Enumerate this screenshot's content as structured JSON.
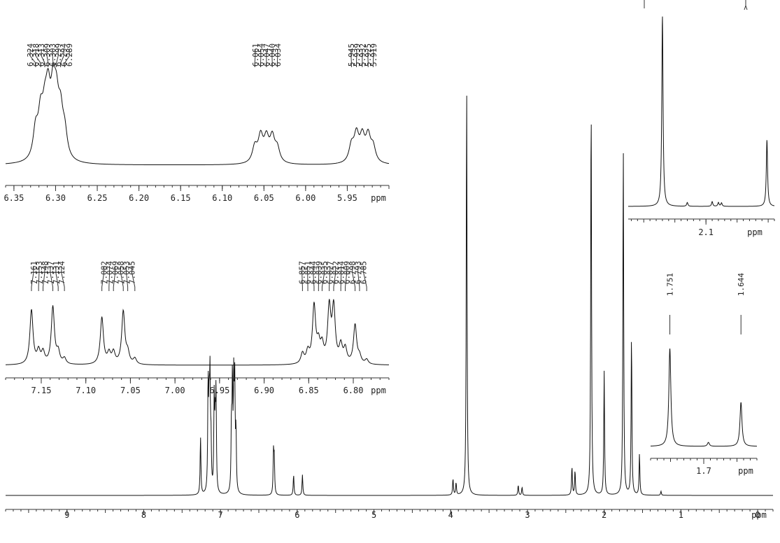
{
  "chart_data": [
    {
      "panel": "full",
      "type": "line",
      "axis": {
        "min": -0.2,
        "max": 9.8,
        "reversed": true,
        "major_ticks": [
          9,
          8,
          7,
          6,
          5,
          4,
          3,
          2,
          1,
          0
        ],
        "minor_step": 0.1,
        "unit_label": "ppm"
      },
      "peaks": [
        {
          "x": 7.26,
          "y": 0.14
        },
        {
          "x": 7.161,
          "y": 0.26
        },
        {
          "x": 7.148,
          "y": 0.18
        },
        {
          "x": 7.137,
          "y": 0.26
        },
        {
          "x": 7.124,
          "y": 0.12
        },
        {
          "x": 7.082,
          "y": 0.22
        },
        {
          "x": 7.069,
          "y": 0.14
        },
        {
          "x": 7.058,
          "y": 0.23
        },
        {
          "x": 6.857,
          "y": 0.16
        },
        {
          "x": 6.844,
          "y": 0.26
        },
        {
          "x": 6.827,
          "y": 0.25
        },
        {
          "x": 6.814,
          "y": 0.25
        },
        {
          "x": 6.798,
          "y": 0.14
        },
        {
          "x": 6.309,
          "y": 0.1
        },
        {
          "x": 6.299,
          "y": 0.08
        },
        {
          "x": 6.047,
          "y": 0.05
        },
        {
          "x": 5.932,
          "y": 0.05
        },
        {
          "x": 3.97,
          "y": 0.04
        },
        {
          "x": 3.93,
          "y": 0.03
        },
        {
          "x": 3.792,
          "y": 1.0
        },
        {
          "x": 3.12,
          "y": 0.025
        },
        {
          "x": 3.07,
          "y": 0.02
        },
        {
          "x": 2.42,
          "y": 0.07
        },
        {
          "x": 2.38,
          "y": 0.06
        },
        {
          "x": 2.17,
          "y": 0.98
        },
        {
          "x": 2.0,
          "y": 0.3
        },
        {
          "x": 1.751,
          "y": 0.85
        },
        {
          "x": 1.644,
          "y": 0.39
        },
        {
          "x": 1.54,
          "y": 0.1
        },
        {
          "x": 1.26,
          "y": 0.01
        }
      ]
    },
    {
      "panel": "inset-6.3-5.9",
      "type": "line",
      "axis": {
        "min": 5.9,
        "max": 6.36,
        "reversed": true,
        "major_ticks": [
          6.35,
          6.3,
          6.25,
          6.2,
          6.15,
          6.1,
          6.05,
          6.0,
          5.95
        ],
        "minor_step": 0.01,
        "unit_label": "ppm"
      },
      "peak_labels": [
        [
          "6.324",
          "6.318",
          "6.313",
          "6.309",
          "6.303",
          "6.299",
          "6.294",
          "6.289"
        ],
        [
          "6.061",
          "6.054",
          "6.047",
          "6.040",
          "6.034"
        ],
        [
          "5.945",
          "5.939",
          "5.932",
          "5.925",
          "5.919"
        ]
      ],
      "peaks": [
        {
          "x": 6.324,
          "y": 0.45
        },
        {
          "x": 6.318,
          "y": 0.62
        },
        {
          "x": 6.313,
          "y": 0.55
        },
        {
          "x": 6.309,
          "y": 0.85
        },
        {
          "x": 6.303,
          "y": 0.88
        },
        {
          "x": 6.299,
          "y": 0.7
        },
        {
          "x": 6.294,
          "y": 0.62
        },
        {
          "x": 6.289,
          "y": 0.38
        },
        {
          "x": 6.061,
          "y": 0.25
        },
        {
          "x": 6.054,
          "y": 0.4
        },
        {
          "x": 6.047,
          "y": 0.36
        },
        {
          "x": 6.04,
          "y": 0.38
        },
        {
          "x": 6.034,
          "y": 0.22
        },
        {
          "x": 5.945,
          "y": 0.26
        },
        {
          "x": 5.939,
          "y": 0.42
        },
        {
          "x": 5.932,
          "y": 0.38
        },
        {
          "x": 5.925,
          "y": 0.4
        },
        {
          "x": 5.919,
          "y": 0.24
        }
      ]
    },
    {
      "panel": "inset-7.2-6.8",
      "type": "line",
      "axis": {
        "min": 6.76,
        "max": 7.19,
        "reversed": true,
        "major_ticks": [
          7.15,
          7.1,
          7.05,
          7.0,
          6.95,
          6.9,
          6.85,
          6.8
        ],
        "minor_step": 0.01,
        "unit_label": "ppm"
      },
      "peak_labels": [
        [
          "7.161",
          "7.153",
          "7.148",
          "7.137",
          "7.131",
          "7.124"
        ],
        [
          "7.082",
          "7.074",
          "7.069",
          "7.058",
          "7.053",
          "7.045"
        ],
        [
          "6.857",
          "6.851",
          "6.844",
          "6.839",
          "6.835",
          "6.827",
          "6.822",
          "6.814",
          "6.809",
          "6.798",
          "6.793",
          "6.785"
        ]
      ],
      "peaks": [
        {
          "x": 7.161,
          "y": 0.95
        },
        {
          "x": 7.153,
          "y": 0.22
        },
        {
          "x": 7.148,
          "y": 0.2
        },
        {
          "x": 7.137,
          "y": 1.0
        },
        {
          "x": 7.131,
          "y": 0.2
        },
        {
          "x": 7.124,
          "y": 0.1
        },
        {
          "x": 7.082,
          "y": 0.82
        },
        {
          "x": 7.074,
          "y": 0.18
        },
        {
          "x": 7.069,
          "y": 0.2
        },
        {
          "x": 7.058,
          "y": 0.92
        },
        {
          "x": 7.053,
          "y": 0.18
        },
        {
          "x": 7.045,
          "y": 0.1
        },
        {
          "x": 6.857,
          "y": 0.18
        },
        {
          "x": 6.851,
          "y": 0.2
        },
        {
          "x": 6.844,
          "y": 1.0
        },
        {
          "x": 6.839,
          "y": 0.3
        },
        {
          "x": 6.835,
          "y": 0.28
        },
        {
          "x": 6.827,
          "y": 0.95
        },
        {
          "x": 6.822,
          "y": 0.95
        },
        {
          "x": 6.814,
          "y": 0.3
        },
        {
          "x": 6.809,
          "y": 0.25
        },
        {
          "x": 6.798,
          "y": 0.68
        },
        {
          "x": 6.793,
          "y": 0.12
        },
        {
          "x": 6.785,
          "y": 0.08
        }
      ]
    },
    {
      "panel": "inset-2.2-2.0",
      "type": "line",
      "axis": {
        "min": 1.99,
        "max": 2.225,
        "reversed": true,
        "major_ticks": [
          2.1
        ],
        "minor_step": 0.01,
        "unit_label": "ppm"
      },
      "peaks": [
        {
          "x": 2.17,
          "y": 1.0
        },
        {
          "x": 2.002,
          "y": 0.35
        },
        {
          "x": 2.13,
          "y": 0.02
        },
        {
          "x": 2.09,
          "y": 0.025
        },
        {
          "x": 2.08,
          "y": 0.02
        },
        {
          "x": 2.075,
          "y": 0.018
        }
      ]
    },
    {
      "panel": "inset-1.75-1.64",
      "type": "line",
      "axis": {
        "min": 1.62,
        "max": 1.78,
        "reversed": true,
        "major_ticks": [
          1.7
        ],
        "minor_step": 0.01,
        "unit_label": "ppm"
      },
      "peak_labels": [
        [
          "1.751"
        ],
        [
          "1.644"
        ]
      ],
      "peaks": [
        {
          "x": 1.751,
          "y": 1.0
        },
        {
          "x": 1.693,
          "y": 0.04
        },
        {
          "x": 1.644,
          "y": 0.45
        }
      ]
    }
  ]
}
